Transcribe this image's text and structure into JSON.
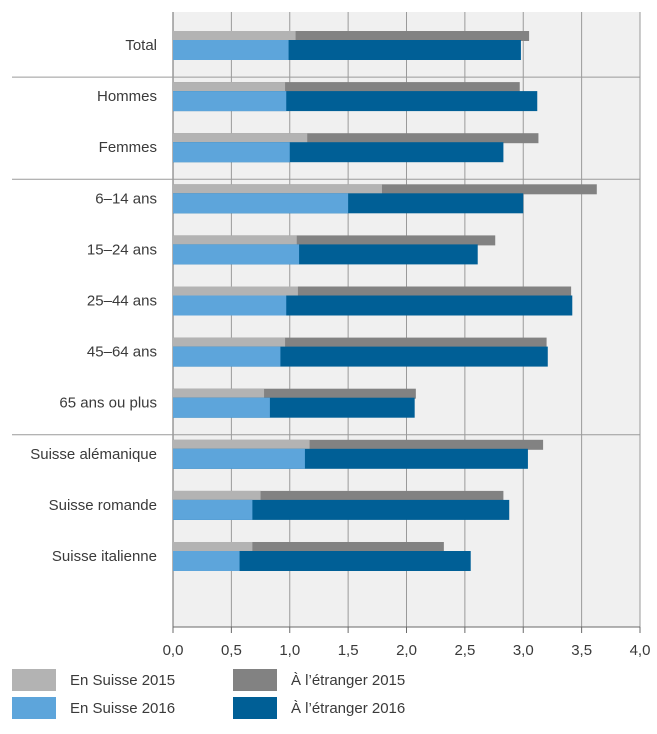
{
  "chart_data": {
    "type": "bar",
    "orientation": "horizontal",
    "stacking": "overlapping-stacked",
    "xlim": [
      0,
      4
    ],
    "x_ticks": [
      "0,0",
      "0,5",
      "1,0",
      "1,5",
      "2,0",
      "2,5",
      "3,0",
      "3,5",
      "4,0"
    ],
    "grid": true,
    "legend_position": "bottom",
    "categories": [
      "Total",
      "Hommes",
      "Femmes",
      "6–14 ans",
      "15–24 ans",
      "25–44 ans",
      "45–64 ans",
      "65 ans ou plus",
      "Suisse alémanique",
      "Suisse romande",
      "Suisse italienne"
    ],
    "group_breaks_after": [
      "Total",
      "Femmes",
      "65 ans ou plus"
    ],
    "years": {
      "2015": {
        "en_suisse": [
          1.05,
          0.96,
          1.15,
          1.79,
          1.06,
          1.07,
          0.96,
          0.78,
          1.17,
          0.75,
          0.68
        ],
        "totals": [
          3.05,
          2.97,
          3.13,
          3.63,
          2.76,
          3.41,
          3.2,
          2.08,
          3.17,
          2.83,
          2.32
        ]
      },
      "2016": {
        "en_suisse": [
          0.99,
          0.97,
          1.0,
          1.5,
          1.08,
          0.97,
          0.92,
          0.83,
          1.13,
          0.68,
          0.57
        ],
        "totals": [
          2.98,
          3.12,
          2.83,
          3.0,
          2.61,
          3.42,
          3.21,
          2.07,
          3.04,
          2.88,
          2.55
        ]
      }
    },
    "series": [
      {
        "name": "En Suisse 2015",
        "color": "#b3b3b3"
      },
      {
        "name": "À l’étranger 2015",
        "color": "#828282"
      },
      {
        "name": "En Suisse 2016",
        "color": "#5da5db"
      },
      {
        "name": "À l’étranger 2016",
        "color": "#005f96"
      }
    ]
  }
}
